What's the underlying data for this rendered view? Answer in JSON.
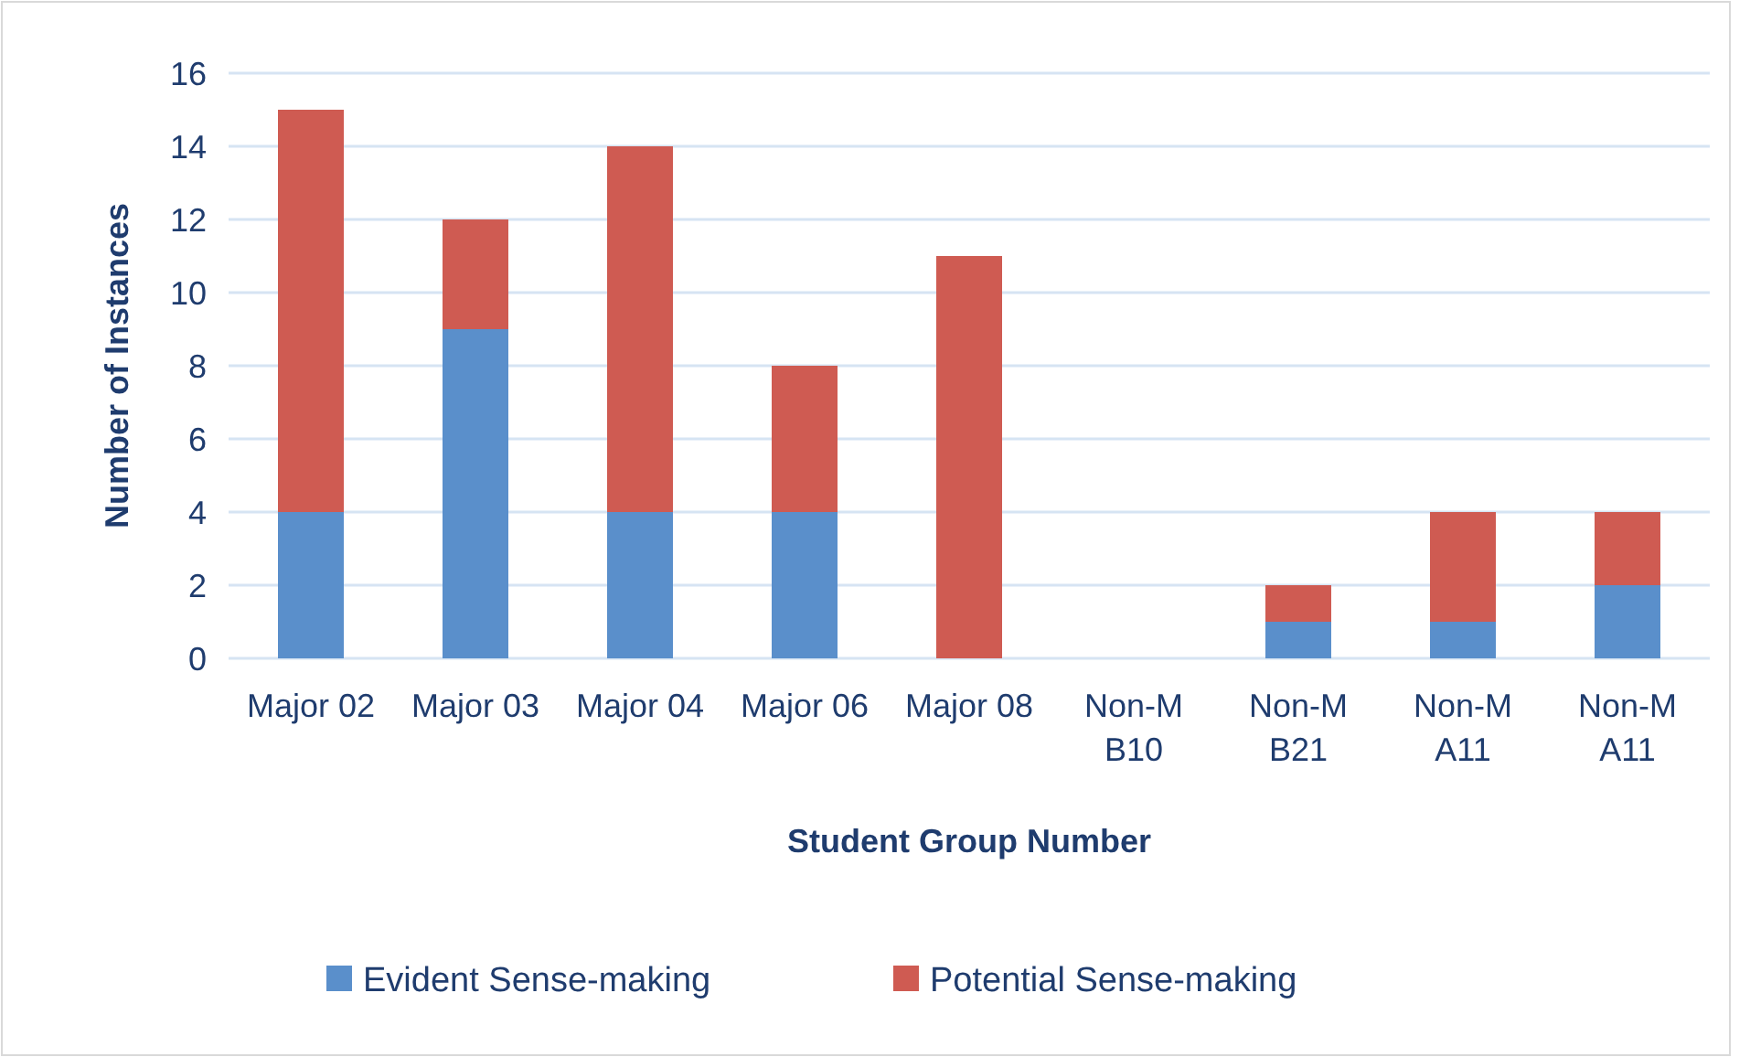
{
  "chart_data": {
    "type": "bar",
    "stacked": true,
    "xlabel": "Student Group Number",
    "ylabel": "Number of Instances",
    "categories": [
      "Major 02",
      "Major 03",
      "Major 04",
      "Major 06",
      "Major 08",
      "Non-M\nB10",
      "Non-M\nB21",
      "Non-M\nA11",
      "Non-M\nA11"
    ],
    "series": [
      {
        "name": "Evident Sense-making",
        "color": "#5a8fcb",
        "values": [
          4,
          9,
          4,
          4,
          0,
          0,
          1,
          1,
          2
        ]
      },
      {
        "name": "Potential Sense-making",
        "color": "#cf5b52",
        "values": [
          11,
          3,
          10,
          4,
          11,
          0,
          1,
          3,
          2
        ]
      }
    ],
    "ylim": [
      0,
      16
    ],
    "yticks": [
      0,
      2,
      4,
      6,
      8,
      10,
      12,
      14,
      16
    ],
    "grid": "y",
    "legend": "bottom"
  }
}
